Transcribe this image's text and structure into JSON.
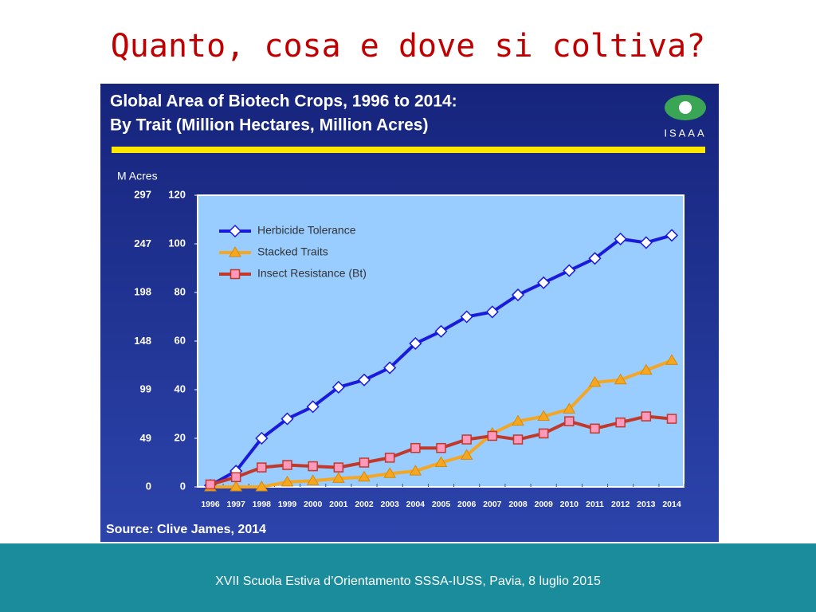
{
  "slide_title": "Quanto, cosa e dove si coltiva?",
  "footer": "XVII Scuola Estiva d’Orientamento SSSA-IUSS, Pavia, 8 luglio 2015",
  "chart_data": {
    "type": "line",
    "title": "Global Area of Biotech Crops, 1996 to 2014:",
    "subtitle": "By Trait (Million Hectares, Million Acres)",
    "logo_text": "ISAAA",
    "source": "Source: Clive James, 2014",
    "y2_label": "M Acres",
    "categories": [
      "1996",
      "1997",
      "1998",
      "1999",
      "2000",
      "2001",
      "2002",
      "2003",
      "2004",
      "2005",
      "2006",
      "2007",
      "2008",
      "2009",
      "2010",
      "2011",
      "2012",
      "2013",
      "2014"
    ],
    "series": [
      {
        "name": "Herbicide Tolerance",
        "color": "#1a1adc",
        "marker": "diamond",
        "values": [
          0.6,
          6.5,
          20,
          28,
          33,
          41,
          44,
          49,
          59,
          64,
          70,
          72,
          79,
          84,
          89,
          94,
          102,
          100.5,
          103.5
        ]
      },
      {
        "name": "Stacked Traits",
        "color": "#f5a623",
        "marker": "triangle",
        "values": [
          0,
          0,
          0,
          2,
          2.5,
          3.5,
          4,
          5.5,
          6.5,
          10,
          13,
          22,
          27,
          29,
          32,
          43,
          44,
          48,
          52
        ]
      },
      {
        "name": "Insect Resistance (Bt)",
        "color": "#c0392b",
        "marker": "square",
        "values": [
          1,
          4,
          8,
          9,
          8.5,
          8,
          10,
          12,
          16,
          16,
          19.5,
          21,
          19.5,
          22,
          27,
          24,
          26.5,
          29,
          28
        ]
      }
    ],
    "ylim": [
      0,
      120
    ],
    "yticks": [
      0,
      20,
      40,
      60,
      80,
      100,
      120
    ],
    "y2lim": [
      0,
      297
    ],
    "y2ticks": [
      0,
      49,
      99,
      148,
      198,
      247,
      297
    ],
    "grid": false,
    "legend": "upper left"
  }
}
